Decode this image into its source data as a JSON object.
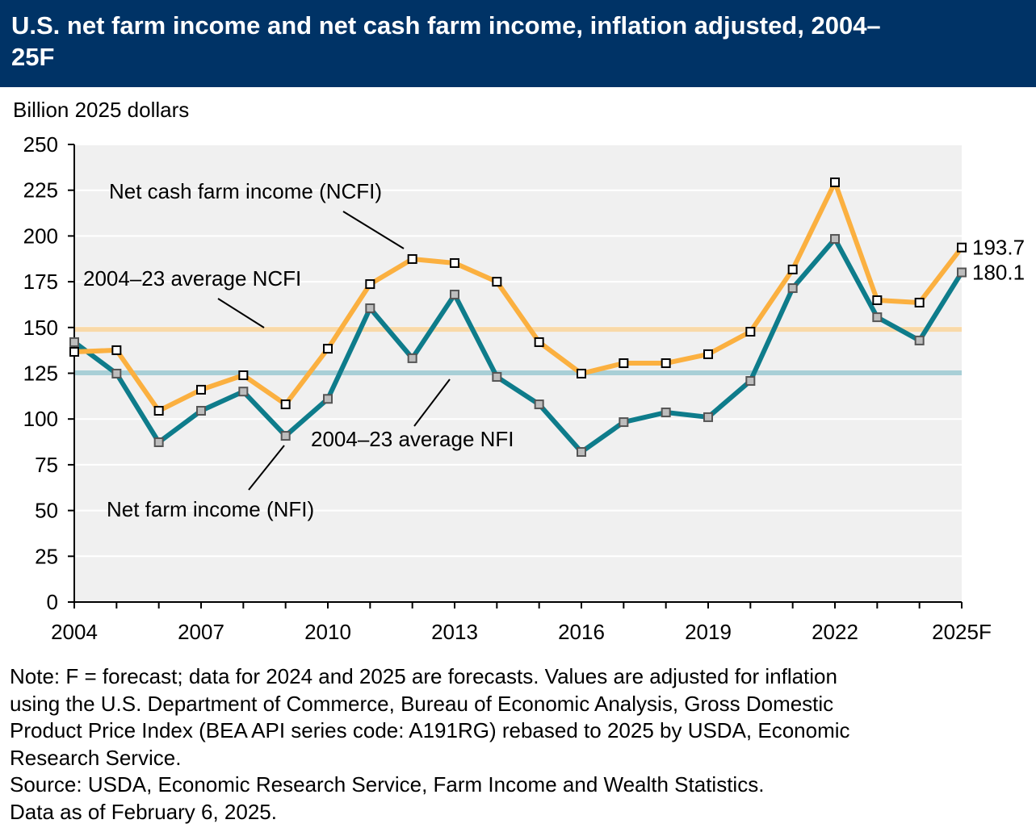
{
  "title": "U.S. net farm income and net cash farm income, inflation adjusted, 2004–25F",
  "colors": {
    "header_bg": "#003366",
    "ncfi": "#FBB040",
    "nfi": "#0E7C8B",
    "ncfi_avg": "#F9D9A8",
    "nfi_avg": "#A8CFD6",
    "plot_bg": "#F0F0F0"
  },
  "chart_data": {
    "type": "line",
    "ylabel": "Billion 2025 dollars",
    "ylim": [
      0,
      250
    ],
    "yticks": [
      "0",
      "25",
      "50",
      "75",
      "100",
      "125",
      "150",
      "175",
      "200",
      "225",
      "250"
    ],
    "x": [
      2004,
      2005,
      2006,
      2007,
      2008,
      2009,
      2010,
      2011,
      2012,
      2013,
      2014,
      2015,
      2016,
      2017,
      2018,
      2019,
      2020,
      2021,
      2022,
      2023,
      2024,
      2025
    ],
    "xtick_labels": [
      "2004",
      "2007",
      "2010",
      "2013",
      "2016",
      "2019",
      "2022",
      "2025F"
    ],
    "grid": "horizontal",
    "series": [
      {
        "name": "Net cash farm income (NCFI)",
        "color": "#FBB040",
        "values": [
          136.7,
          137.6,
          104.5,
          116.0,
          123.9,
          108.0,
          138.4,
          173.7,
          187.4,
          185.2,
          175.0,
          142.0,
          124.8,
          130.5,
          130.5,
          135.4,
          147.7,
          181.7,
          229.3,
          164.9,
          163.6,
          193.7
        ],
        "end_label": "193.7"
      },
      {
        "name": "Net farm income (NFI)",
        "color": "#0E7C8B",
        "values": [
          142.0,
          124.8,
          87.3,
          104.5,
          115.0,
          90.8,
          111.0,
          160.5,
          133.2,
          168.0,
          123.0,
          108.0,
          82.0,
          98.3,
          103.6,
          101.0,
          120.8,
          171.5,
          198.4,
          155.6,
          142.9,
          180.1
        ],
        "end_label": "180.1"
      }
    ],
    "reference_lines": [
      {
        "name": "2004–23 average NCFI",
        "value": 149.0,
        "color": "#F9D9A8"
      },
      {
        "name": "2004–23 average NFI",
        "value": 125.2,
        "color": "#A8CFD6"
      }
    ]
  },
  "notes": [
    "Note: F = forecast; data for 2024 and 2025 are forecasts. Values are adjusted for inflation",
    "using the U.S. Department of Commerce, Bureau of Economic Analysis, Gross Domestic",
    "Product Price Index (BEA API series code: A191RG) rebased to 2025 by USDA, Economic",
    "Research Service.",
    "Source: USDA, Economic Research Service, Farm Income and Wealth Statistics.",
    "Data as of February 6, 2025."
  ]
}
